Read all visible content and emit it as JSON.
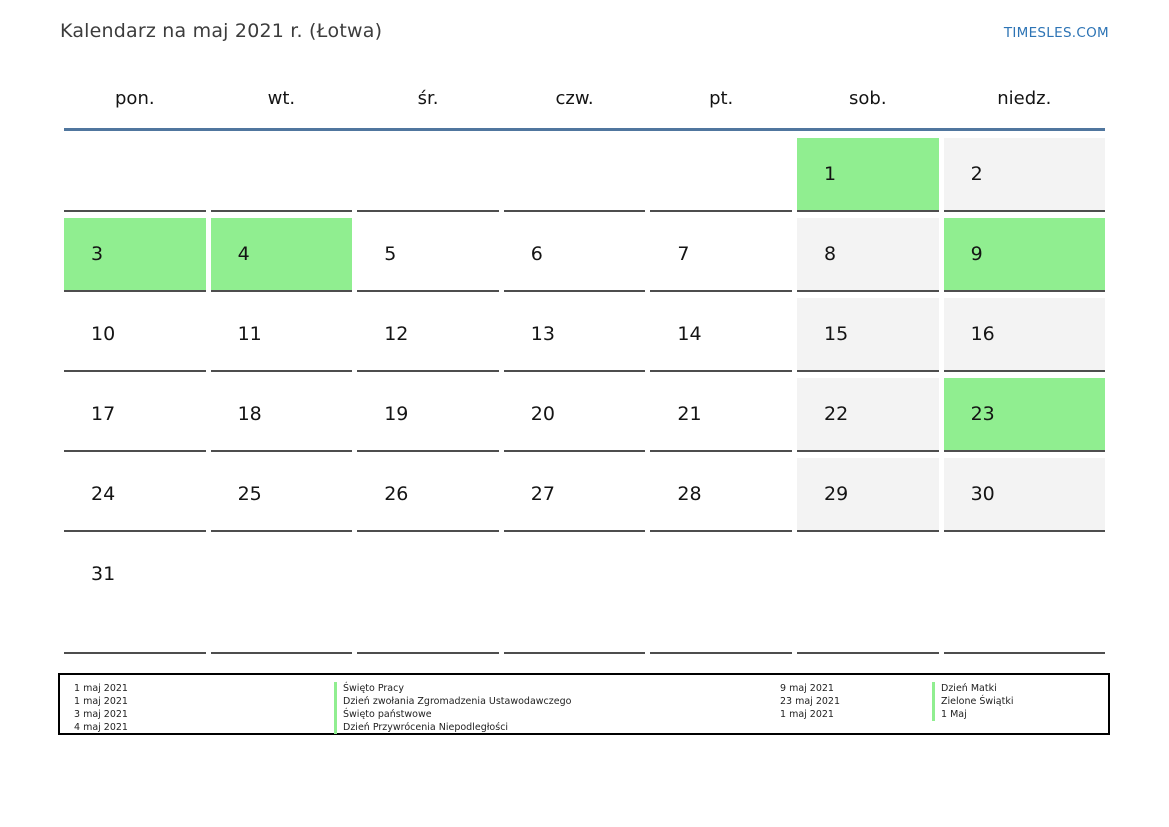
{
  "header": {
    "title": "Kalendarz na maj 2021 r. (Łotwa)",
    "brand": "TIMESLES.COM"
  },
  "calendar": {
    "weekdays": [
      "pon.",
      "wt.",
      "śr.",
      "czw.",
      "pt.",
      "sob.",
      "niedz."
    ],
    "weeks": [
      [
        {
          "day": "",
          "type": "empty"
        },
        {
          "day": "",
          "type": "empty"
        },
        {
          "day": "",
          "type": "empty"
        },
        {
          "day": "",
          "type": "empty"
        },
        {
          "day": "",
          "type": "empty"
        },
        {
          "day": "1",
          "type": "holiday"
        },
        {
          "day": "2",
          "type": "weekend"
        }
      ],
      [
        {
          "day": "3",
          "type": "holiday"
        },
        {
          "day": "4",
          "type": "holiday"
        },
        {
          "day": "5",
          "type": "workday"
        },
        {
          "day": "6",
          "type": "workday"
        },
        {
          "day": "7",
          "type": "workday"
        },
        {
          "day": "8",
          "type": "weekend"
        },
        {
          "day": "9",
          "type": "holiday"
        }
      ],
      [
        {
          "day": "10",
          "type": "workday"
        },
        {
          "day": "11",
          "type": "workday"
        },
        {
          "day": "12",
          "type": "workday"
        },
        {
          "day": "13",
          "type": "workday"
        },
        {
          "day": "14",
          "type": "workday"
        },
        {
          "day": "15",
          "type": "weekend"
        },
        {
          "day": "16",
          "type": "weekend"
        }
      ],
      [
        {
          "day": "17",
          "type": "workday"
        },
        {
          "day": "18",
          "type": "workday"
        },
        {
          "day": "19",
          "type": "workday"
        },
        {
          "day": "20",
          "type": "workday"
        },
        {
          "day": "21",
          "type": "workday"
        },
        {
          "day": "22",
          "type": "weekend"
        },
        {
          "day": "23",
          "type": "holiday"
        }
      ],
      [
        {
          "day": "24",
          "type": "workday"
        },
        {
          "day": "25",
          "type": "workday"
        },
        {
          "day": "26",
          "type": "workday"
        },
        {
          "day": "27",
          "type": "workday"
        },
        {
          "day": "28",
          "type": "workday"
        },
        {
          "day": "29",
          "type": "weekend"
        },
        {
          "day": "30",
          "type": "weekend"
        }
      ],
      [
        {
          "day": "31",
          "type": "workday"
        },
        {
          "day": "",
          "type": "empty"
        },
        {
          "day": "",
          "type": "empty"
        },
        {
          "day": "",
          "type": "empty"
        },
        {
          "day": "",
          "type": "empty"
        },
        {
          "day": "",
          "type": "empty"
        },
        {
          "day": "",
          "type": "empty"
        }
      ]
    ]
  },
  "legend": {
    "left": [
      {
        "date": "1 maj 2021",
        "name": "Święto Pracy"
      },
      {
        "date": "1 maj 2021",
        "name": "Dzień zwołania Zgromadzenia Ustawodawczego"
      },
      {
        "date": "3 maj 2021",
        "name": "Święto państwowe"
      },
      {
        "date": "4 maj 2021",
        "name": "Dzień Przywrócenia Niepodległości"
      }
    ],
    "right": [
      {
        "date": "9 maj 2021",
        "name": "Dzień Matki"
      },
      {
        "date": "23 maj 2021",
        "name": "Zielone Świątki"
      },
      {
        "date": "1 maj 2021",
        "name": "1 Maj"
      }
    ]
  },
  "colors": {
    "holiday_green": "#90EE90",
    "weekend_gray": "#F3F3F3",
    "header_line_blue": "#50769E",
    "brand_blue": "#2D74B5",
    "cell_border": "#4E4E4E"
  }
}
